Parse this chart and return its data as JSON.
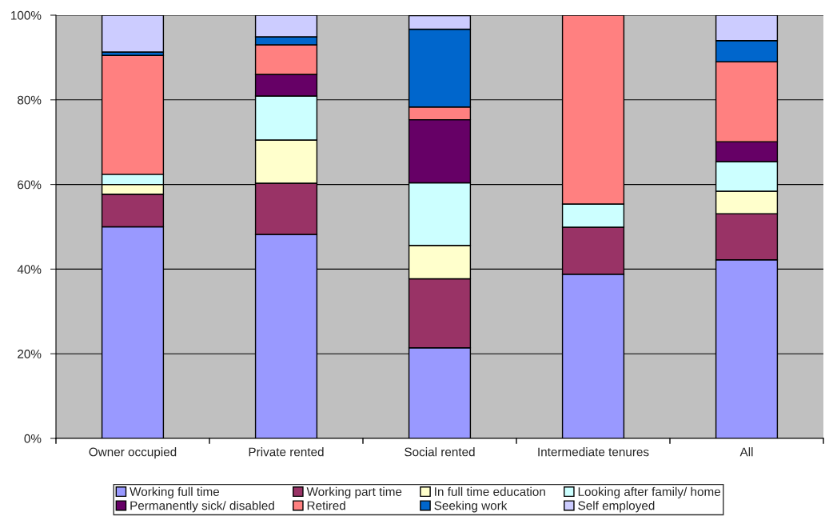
{
  "chart_data": {
    "type": "bar",
    "stacked": true,
    "categories": [
      "Owner occupied",
      "Private rented",
      "Social rented",
      "Intermediate tenures",
      "All"
    ],
    "series": [
      {
        "name": "Working full time",
        "color": "#9999ff",
        "values": [
          50.0,
          48.2,
          21.4,
          38.8,
          42.2
        ]
      },
      {
        "name": "Working part time",
        "color": "#993366",
        "values": [
          7.7,
          12.1,
          16.3,
          11.1,
          10.9
        ]
      },
      {
        "name": "In full time education",
        "color": "#ffffcc",
        "values": [
          2.3,
          10.2,
          7.9,
          0,
          5.3
        ]
      },
      {
        "name": "Looking after family/ home",
        "color": "#ccffff",
        "values": [
          2.4,
          10.4,
          14.8,
          5.5,
          7.0
        ]
      },
      {
        "name": "Permanently sick/ disabled",
        "color": "#660066",
        "values": [
          0,
          5.1,
          14.9,
          0,
          4.7
        ]
      },
      {
        "name": "Retired",
        "color": "#ff8080",
        "values": [
          28.1,
          7.0,
          3.0,
          44.6,
          18.9
        ]
      },
      {
        "name": "Seeking work",
        "color": "#0066cc",
        "values": [
          0.8,
          1.9,
          18.4,
          0,
          5.0
        ]
      },
      {
        "name": "Self employed",
        "color": "#ccccff",
        "values": [
          8.7,
          5.1,
          3.2,
          0,
          6.0
        ]
      }
    ],
    "ylim": [
      0,
      100
    ],
    "yticks": [
      {
        "value": 0,
        "label": "0%"
      },
      {
        "value": 20,
        "label": "20%"
      },
      {
        "value": 40,
        "label": "40%"
      },
      {
        "value": 60,
        "label": "60%"
      },
      {
        "value": 80,
        "label": "80%"
      },
      {
        "value": 100,
        "label": "100%"
      }
    ],
    "grid": "y",
    "legend": "bottom"
  }
}
